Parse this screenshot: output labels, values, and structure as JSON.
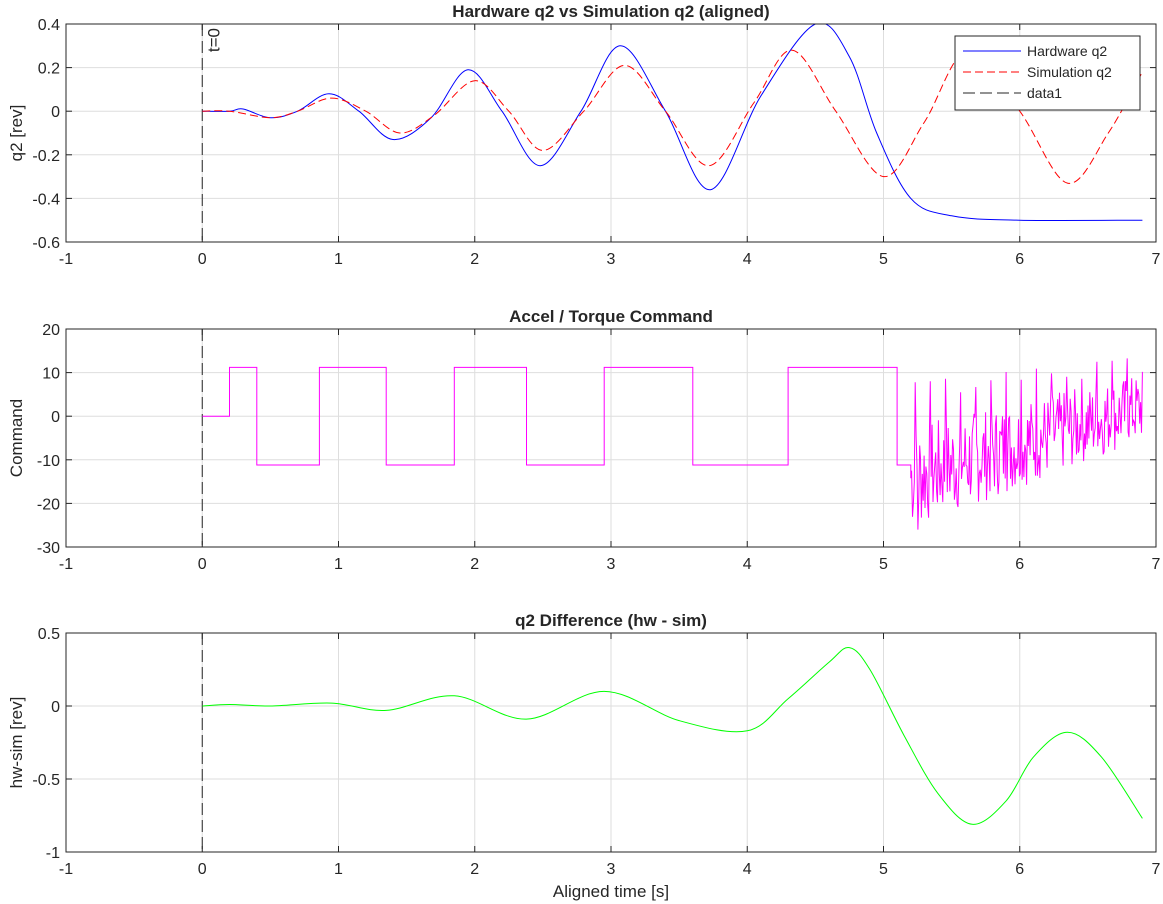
{
  "chart_data": [
    {
      "type": "line",
      "title": "Hardware q2 vs Simulation q2 (aligned)",
      "xlabel": "",
      "ylabel": "q2 [rev]",
      "xlim": [
        -1,
        7
      ],
      "ylim": [
        -0.6,
        0.4
      ],
      "xticks": [
        "-1",
        "0",
        "1",
        "2",
        "3",
        "4",
        "5",
        "6",
        "7"
      ],
      "yticks": [
        "-0.6",
        "-0.4",
        "-0.2",
        "0",
        "0.2",
        "0.4"
      ],
      "grid": true,
      "legend_position": "top-right",
      "annotations": [
        {
          "text": "t=0",
          "x": 0
        }
      ],
      "vline": {
        "name": "data1",
        "x": 0,
        "color": "#262626",
        "style": "dashed"
      },
      "series": [
        {
          "name": "Hardware q2",
          "color": "#0000ff",
          "style": "solid",
          "x": [
            0,
            0.2,
            0.3,
            0.5,
            0.7,
            0.93,
            1.15,
            1.4,
            1.68,
            1.95,
            2.2,
            2.48,
            2.78,
            3.07,
            3.4,
            3.73,
            4.1,
            4.5,
            4.75,
            4.95,
            5.2,
            5.5,
            6.0,
            6.9
          ],
          "values": [
            0,
            0,
            0.01,
            -0.03,
            0.0,
            0.08,
            0.0,
            -0.13,
            -0.03,
            0.19,
            0.0,
            -0.25,
            0.0,
            0.3,
            0.0,
            -0.36,
            0.07,
            0.4,
            0.25,
            -0.1,
            -0.4,
            -0.48,
            -0.5,
            -0.5
          ]
        },
        {
          "name": "Simulation q2",
          "color": "#ff0000",
          "style": "dashed",
          "x": [
            0,
            0.2,
            0.5,
            0.7,
            0.95,
            1.2,
            1.45,
            1.7,
            2.0,
            2.25,
            2.5,
            2.8,
            3.1,
            3.4,
            3.72,
            4.05,
            4.33,
            4.65,
            5.0,
            5.3,
            5.62,
            6.0,
            6.35,
            6.65,
            6.9
          ],
          "values": [
            0,
            0,
            -0.03,
            0.0,
            0.06,
            0.0,
            -0.1,
            -0.02,
            0.14,
            0.0,
            -0.18,
            0.0,
            0.21,
            0.0,
            -0.25,
            0.04,
            0.28,
            0.0,
            -0.3,
            -0.05,
            0.28,
            0.0,
            -0.33,
            -0.1,
            0.18
          ]
        }
      ]
    },
    {
      "type": "line",
      "title": "Accel / Torque Command",
      "xlabel": "",
      "ylabel": "Command",
      "xlim": [
        -1,
        7
      ],
      "ylim": [
        -30,
        20
      ],
      "xticks": [
        "-1",
        "0",
        "1",
        "2",
        "3",
        "4",
        "5",
        "6",
        "7"
      ],
      "yticks": [
        "-30",
        "-20",
        "-10",
        "0",
        "10",
        "20"
      ],
      "grid": true,
      "vline": {
        "x": 0,
        "color": "#262626",
        "style": "dashed"
      },
      "series": [
        {
          "name": "",
          "color": "#ff00ff",
          "style": "solid",
          "step_x": [
            0,
            0.2,
            0.4,
            0.86,
            1.35,
            1.85,
            2.38,
            2.95,
            3.6,
            4.3,
            5.1,
            5.2
          ],
          "step_values": [
            0,
            11.2,
            -11.2,
            11.2,
            -11.2,
            11.2,
            -11.2,
            11.2,
            -11.2,
            11.2,
            -11.2
          ],
          "noisy_region": {
            "x_start": 5.2,
            "x_end": 6.9,
            "min": -26,
            "max": 14
          }
        }
      ]
    },
    {
      "type": "line",
      "title": "q2 Difference (hw - sim)",
      "xlabel": "Aligned time [s]",
      "ylabel": "hw-sim [rev]",
      "xlim": [
        -1,
        7
      ],
      "ylim": [
        -1,
        0.5
      ],
      "xticks": [
        "-1",
        "0",
        "1",
        "2",
        "3",
        "4",
        "5",
        "6",
        "7"
      ],
      "yticks": [
        "-1",
        "-0.5",
        "0",
        "0.5"
      ],
      "grid": true,
      "vline": {
        "x": 0,
        "color": "#262626",
        "style": "dashed"
      },
      "series": [
        {
          "name": "",
          "color": "#00ff00",
          "style": "solid",
          "x": [
            0,
            0.2,
            0.5,
            0.95,
            1.35,
            1.85,
            2.38,
            2.95,
            3.5,
            4.0,
            4.3,
            4.6,
            4.75,
            4.9,
            5.15,
            5.4,
            5.65,
            5.9,
            6.1,
            6.35,
            6.6,
            6.9
          ],
          "values": [
            0,
            0.01,
            0.0,
            0.02,
            -0.03,
            0.07,
            -0.09,
            0.1,
            -0.1,
            -0.17,
            0.05,
            0.3,
            0.4,
            0.25,
            -0.2,
            -0.6,
            -0.81,
            -0.65,
            -0.35,
            -0.18,
            -0.35,
            -0.77
          ]
        }
      ]
    }
  ]
}
